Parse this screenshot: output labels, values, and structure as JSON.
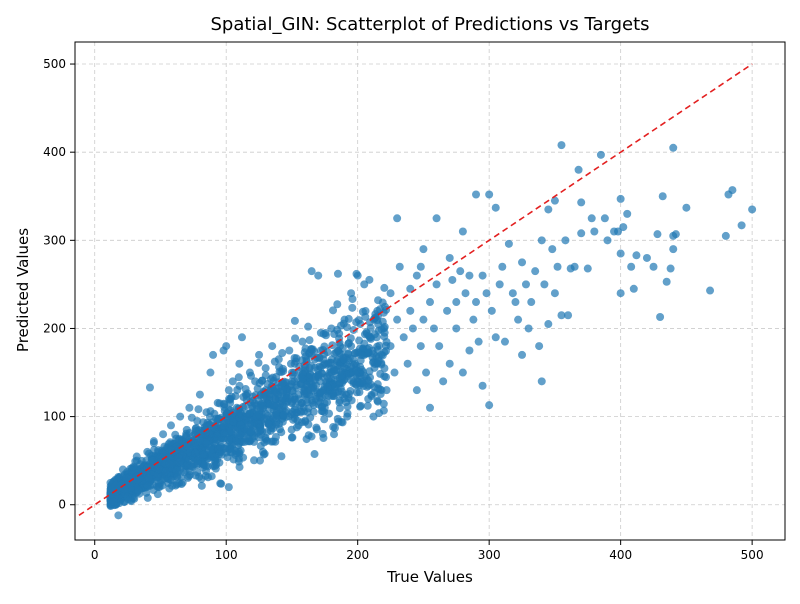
{
  "chart_data": {
    "type": "scatter",
    "title": "Spatial_GIN: Scatterplot of Predictions vs Targets",
    "xlabel": "True Values",
    "ylabel": "Predicted Values",
    "xlim": [
      -15,
      525
    ],
    "ylim": [
      -40,
      525
    ],
    "xticks": [
      0,
      100,
      200,
      300,
      400,
      500
    ],
    "yticks": [
      0,
      100,
      200,
      300,
      400,
      500
    ],
    "grid": true,
    "point_color": "#1f77b4",
    "point_alpha": 0.7,
    "reference_line": {
      "x": [
        -12,
        500
      ],
      "y": [
        -12,
        500
      ],
      "color": "#e32020",
      "style": "dashed"
    },
    "series": [
      {
        "points": [
          [
            12,
            5
          ],
          [
            14,
            15
          ],
          [
            15,
            8
          ],
          [
            16,
            22
          ],
          [
            18,
            -12
          ],
          [
            18,
            12
          ],
          [
            20,
            28
          ],
          [
            22,
            18
          ],
          [
            25,
            35
          ],
          [
            25,
            10
          ],
          [
            28,
            25
          ],
          [
            30,
            40
          ],
          [
            30,
            15
          ],
          [
            32,
            50
          ],
          [
            35,
            30
          ],
          [
            35,
            20
          ],
          [
            38,
            45
          ],
          [
            40,
            60
          ],
          [
            40,
            25
          ],
          [
            42,
            133
          ],
          [
            45,
            38
          ],
          [
            45,
            70
          ],
          [
            48,
            55
          ],
          [
            48,
            12
          ],
          [
            50,
            45
          ],
          [
            52,
            80
          ],
          [
            55,
            30
          ],
          [
            55,
            65
          ],
          [
            58,
            90
          ],
          [
            60,
            50
          ],
          [
            60,
            35
          ],
          [
            62,
            75
          ],
          [
            65,
            100
          ],
          [
            65,
            40
          ],
          [
            68,
            60
          ],
          [
            70,
            85
          ],
          [
            70,
            45
          ],
          [
            72,
            110
          ],
          [
            75,
            55
          ],
          [
            75,
            70
          ],
          [
            78,
            95
          ],
          [
            80,
            125
          ],
          [
            80,
            50
          ],
          [
            82,
            65
          ],
          [
            85,
            105
          ],
          [
            85,
            80
          ],
          [
            88,
            150
          ],
          [
            88,
            55
          ],
          [
            90,
            170
          ],
          [
            92,
            90
          ],
          [
            95,
            115
          ],
          [
            95,
            60
          ],
          [
            98,
            175
          ],
          [
            98,
            75
          ],
          [
            100,
            180
          ],
          [
            100,
            100
          ],
          [
            102,
            130
          ],
          [
            102,
            20
          ],
          [
            105,
            85
          ],
          [
            105,
            140
          ],
          [
            108,
            110
          ],
          [
            110,
            70
          ],
          [
            110,
            160
          ],
          [
            112,
            190
          ],
          [
            115,
            95
          ],
          [
            115,
            125
          ],
          [
            118,
            150
          ],
          [
            120,
            80
          ],
          [
            120,
            110
          ],
          [
            122,
            140
          ],
          [
            125,
            170
          ],
          [
            125,
            100
          ],
          [
            128,
            60
          ],
          [
            130,
            130
          ],
          [
            130,
            155
          ],
          [
            132,
            115
          ],
          [
            135,
            180
          ],
          [
            135,
            90
          ],
          [
            138,
            145
          ],
          [
            140,
            120
          ],
          [
            140,
            165
          ],
          [
            142,
            55
          ],
          [
            145,
            135
          ],
          [
            145,
            105
          ],
          [
            148,
            175
          ],
          [
            150,
            140
          ],
          [
            150,
            115
          ],
          [
            152,
            160
          ],
          [
            155,
            90
          ],
          [
            155,
            125
          ],
          [
            158,
            185
          ],
          [
            160,
            130
          ],
          [
            160,
            150
          ],
          [
            162,
            105
          ],
          [
            165,
            265
          ],
          [
            165,
            170
          ],
          [
            168,
            120
          ],
          [
            170,
            145
          ],
          [
            170,
            260
          ],
          [
            172,
            195
          ],
          [
            175,
            110
          ],
          [
            175,
            160
          ],
          [
            178,
            130
          ],
          [
            180,
            200
          ],
          [
            180,
            150
          ],
          [
            182,
            80
          ],
          [
            185,
            175
          ],
          [
            185,
            262
          ],
          [
            188,
            125
          ],
          [
            190,
            210
          ],
          [
            190,
            150
          ],
          [
            192,
            100
          ],
          [
            195,
            180
          ],
          [
            195,
            240
          ],
          [
            198,
            160
          ],
          [
            200,
            140
          ],
          [
            200,
            260
          ],
          [
            202,
            205
          ],
          [
            205,
            170
          ],
          [
            205,
            250
          ],
          [
            208,
            120
          ],
          [
            210,
            190
          ],
          [
            212,
            100
          ],
          [
            215,
            220
          ],
          [
            215,
            160
          ],
          [
            218,
            170
          ],
          [
            220,
            200
          ],
          [
            222,
            130
          ],
          [
            225,
            240
          ],
          [
            225,
            180
          ],
          [
            228,
            150
          ],
          [
            230,
            325
          ],
          [
            230,
            210
          ],
          [
            232,
            270
          ],
          [
            235,
            190
          ],
          [
            238,
            160
          ],
          [
            240,
            220
          ],
          [
            240,
            245
          ],
          [
            242,
            200
          ],
          [
            245,
            260
          ],
          [
            245,
            130
          ],
          [
            248,
            270
          ],
          [
            248,
            180
          ],
          [
            250,
            290
          ],
          [
            250,
            210
          ],
          [
            252,
            150
          ],
          [
            255,
            230
          ],
          [
            255,
            110
          ],
          [
            258,
            200
          ],
          [
            260,
            325
          ],
          [
            260,
            250
          ],
          [
            262,
            180
          ],
          [
            265,
            140
          ],
          [
            268,
            220
          ],
          [
            270,
            280
          ],
          [
            270,
            160
          ],
          [
            272,
            255
          ],
          [
            275,
            230
          ],
          [
            275,
            200
          ],
          [
            278,
            265
          ],
          [
            280,
            310
          ],
          [
            280,
            150
          ],
          [
            282,
            240
          ],
          [
            285,
            260
          ],
          [
            285,
            175
          ],
          [
            288,
            210
          ],
          [
            290,
            352
          ],
          [
            290,
            230
          ],
          [
            292,
            185
          ],
          [
            295,
            260
          ],
          [
            295,
            135
          ],
          [
            298,
            240
          ],
          [
            300,
            352
          ],
          [
            300,
            113
          ],
          [
            302,
            220
          ],
          [
            305,
            337
          ],
          [
            305,
            190
          ],
          [
            308,
            250
          ],
          [
            310,
            270
          ],
          [
            312,
            185
          ],
          [
            315,
            296
          ],
          [
            318,
            240
          ],
          [
            320,
            230
          ],
          [
            322,
            210
          ],
          [
            325,
            275
          ],
          [
            325,
            170
          ],
          [
            328,
            250
          ],
          [
            330,
            200
          ],
          [
            332,
            230
          ],
          [
            335,
            265
          ],
          [
            338,
            180
          ],
          [
            340,
            300
          ],
          [
            340,
            140
          ],
          [
            342,
            250
          ],
          [
            345,
            335
          ],
          [
            345,
            205
          ],
          [
            348,
            290
          ],
          [
            350,
            345
          ],
          [
            350,
            240
          ],
          [
            352,
            270
          ],
          [
            355,
            408
          ],
          [
            355,
            215
          ],
          [
            358,
            300
          ],
          [
            360,
            215
          ],
          [
            362,
            268
          ],
          [
            365,
            270
          ],
          [
            368,
            380
          ],
          [
            370,
            343
          ],
          [
            370,
            308
          ],
          [
            375,
            268
          ],
          [
            378,
            325
          ],
          [
            380,
            310
          ],
          [
            385,
            397
          ],
          [
            388,
            325
          ],
          [
            390,
            300
          ],
          [
            395,
            310
          ],
          [
            398,
            310
          ],
          [
            400,
            347
          ],
          [
            400,
            285
          ],
          [
            400,
            240
          ],
          [
            402,
            315
          ],
          [
            405,
            330
          ],
          [
            408,
            270
          ],
          [
            410,
            245
          ],
          [
            412,
            283
          ],
          [
            420,
            280
          ],
          [
            425,
            270
          ],
          [
            428,
            307
          ],
          [
            430,
            213
          ],
          [
            432,
            350
          ],
          [
            435,
            253
          ],
          [
            438,
            268
          ],
          [
            440,
            405
          ],
          [
            440,
            305
          ],
          [
            440,
            290
          ],
          [
            442,
            307
          ],
          [
            450,
            337
          ],
          [
            468,
            243
          ],
          [
            480,
            305
          ],
          [
            482,
            352
          ],
          [
            485,
            357
          ],
          [
            492,
            317
          ],
          [
            500,
            335
          ]
        ]
      }
    ]
  }
}
